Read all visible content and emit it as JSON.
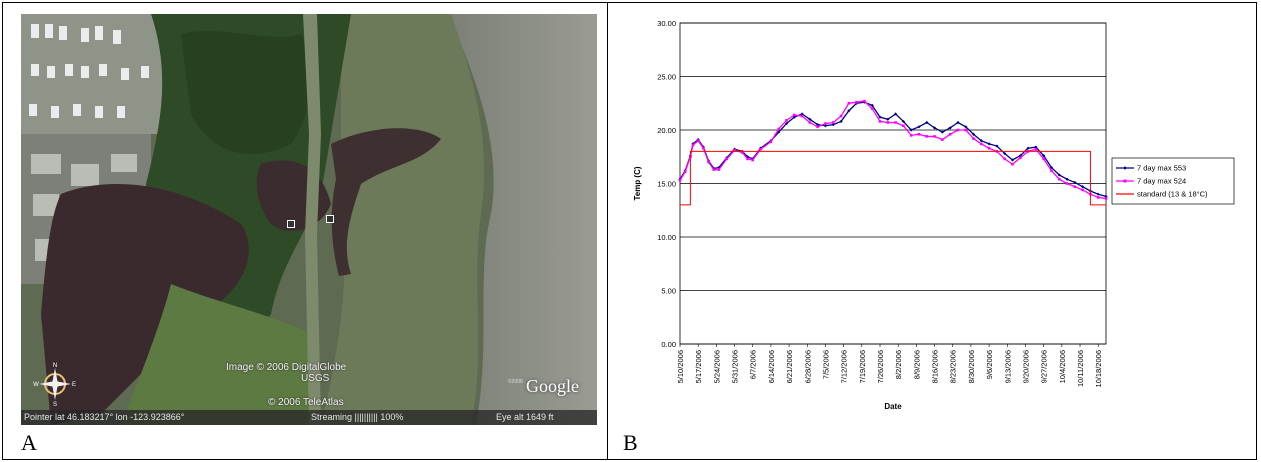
{
  "panels": {
    "left_letter": "A",
    "right_letter": "B"
  },
  "satellite": {
    "credit_line1": "Image © 2006 DigitalGlobe",
    "credit_line2": "USGS",
    "credit_line3": "© 2006 TeleAtlas",
    "google_logo": "Google",
    "google_copyright": "©2006",
    "status_pointer": "Pointer lat  46.183217°   lon -123.923866°",
    "status_streaming": "Streaming |||||||||| 100%",
    "status_eye": "Eye  alt    1649 ft",
    "compass_labels": [
      "N",
      "E",
      "S",
      "W"
    ],
    "markers": 2
  },
  "colors": {
    "series_553": "#000080",
    "series_524": "#ff00ff",
    "series_standard": "#ff0000",
    "gridline": "#000000"
  },
  "chart_data": {
    "type": "line",
    "xlabel": "Date",
    "ylabel": "Temp (C)",
    "ylim": [
      0,
      30
    ],
    "yticks": [
      "0.00",
      "5.00",
      "10.00",
      "15.00",
      "20.00",
      "25.00",
      "30.00"
    ],
    "grid": "horizontal",
    "legend_placement": "right",
    "x_tick_labels": [
      "5/10/2006",
      "5/17/2006",
      "5/24/2006",
      "5/31/2006",
      "6/7/2006",
      "6/14/2006",
      "6/21/2006",
      "6/28/2006",
      "7/5/2006",
      "7/12/2006",
      "7/19/2006",
      "7/26/2006",
      "8/2/2006",
      "8/9/2006",
      "8/16/2006",
      "8/23/2006",
      "8/30/2006",
      "9/6/2006",
      "9/13/2006",
      "9/20/2006",
      "9/27/2006",
      "10/4/2006",
      "10/11/2006",
      "10/18/2006"
    ],
    "x": [
      "5/10/2006",
      "5/12/2006",
      "5/14/2006",
      "5/15/2006",
      "5/17/2006",
      "5/19/2006",
      "5/21/2006",
      "5/23/2006",
      "5/25/2006",
      "5/28/2006",
      "5/31/2006",
      "6/3/2006",
      "6/5/2006",
      "6/7/2006",
      "6/10/2006",
      "6/14/2006",
      "6/17/2006",
      "6/20/2006",
      "6/23/2006",
      "6/26/2006",
      "6/29/2006",
      "7/2/2006",
      "7/5/2006",
      "7/8/2006",
      "7/11/2006",
      "7/14/2006",
      "7/17/2006",
      "7/20/2006",
      "7/23/2006",
      "7/26/2006",
      "7/29/2006",
      "8/1/2006",
      "8/4/2006",
      "8/7/2006",
      "8/10/2006",
      "8/13/2006",
      "8/16/2006",
      "8/19/2006",
      "8/22/2006",
      "8/25/2006",
      "8/28/2006",
      "8/31/2006",
      "9/3/2006",
      "9/6/2006",
      "9/9/2006",
      "9/12/2006",
      "9/15/2006",
      "9/18/2006",
      "9/21/2006",
      "9/24/2006",
      "9/27/2006",
      "9/30/2006",
      "10/3/2006",
      "10/6/2006",
      "10/9/2006",
      "10/12/2006",
      "10/15/2006",
      "10/18/2006",
      "10/21/2006"
    ],
    "series": [
      {
        "name": "7 day max 553",
        "values": [
          15.4,
          16.2,
          17.6,
          18.7,
          19.1,
          18.4,
          17.1,
          16.4,
          16.5,
          17.4,
          18.2,
          18.0,
          17.5,
          17.3,
          18.3,
          19.0,
          19.8,
          20.6,
          21.2,
          21.5,
          21.0,
          20.5,
          20.4,
          20.5,
          20.8,
          21.8,
          22.5,
          22.6,
          22.3,
          21.2,
          21.0,
          21.5,
          20.8,
          20.0,
          20.3,
          20.7,
          20.2,
          19.8,
          20.2,
          20.7,
          20.3,
          19.6,
          19.0,
          18.7,
          18.5,
          17.8,
          17.2,
          17.6,
          18.3,
          18.4,
          17.6,
          16.5,
          15.8,
          15.4,
          15.1,
          14.7,
          14.3,
          14.0,
          13.8
        ],
        "marker": "diamond"
      },
      {
        "name": "7 day max 524",
        "values": [
          15.3,
          16.1,
          17.5,
          18.6,
          19.0,
          18.3,
          17.0,
          16.3,
          16.3,
          17.3,
          18.1,
          17.9,
          17.3,
          17.2,
          18.2,
          18.9,
          20.1,
          20.9,
          21.4,
          21.3,
          20.7,
          20.3,
          20.6,
          20.7,
          21.3,
          22.5,
          22.6,
          22.7,
          22.0,
          20.8,
          20.7,
          20.7,
          20.4,
          19.5,
          19.6,
          19.4,
          19.4,
          19.1,
          19.6,
          20.0,
          20.0,
          19.2,
          18.7,
          18.3,
          18.0,
          17.3,
          16.8,
          17.4,
          18.0,
          18.2,
          17.3,
          16.2,
          15.4,
          15.0,
          14.7,
          14.4,
          14.0,
          13.7,
          13.6
        ],
        "marker": "square"
      },
      {
        "name": "standard (13 & 18°C)",
        "step_points": [
          [
            "5/10/2006",
            13
          ],
          [
            "5/14/2006",
            13
          ],
          [
            "5/14/2006",
            18
          ],
          [
            "10/15/2006",
            18
          ],
          [
            "10/15/2006",
            13
          ],
          [
            "10/21/2006",
            13
          ]
        ]
      }
    ]
  }
}
